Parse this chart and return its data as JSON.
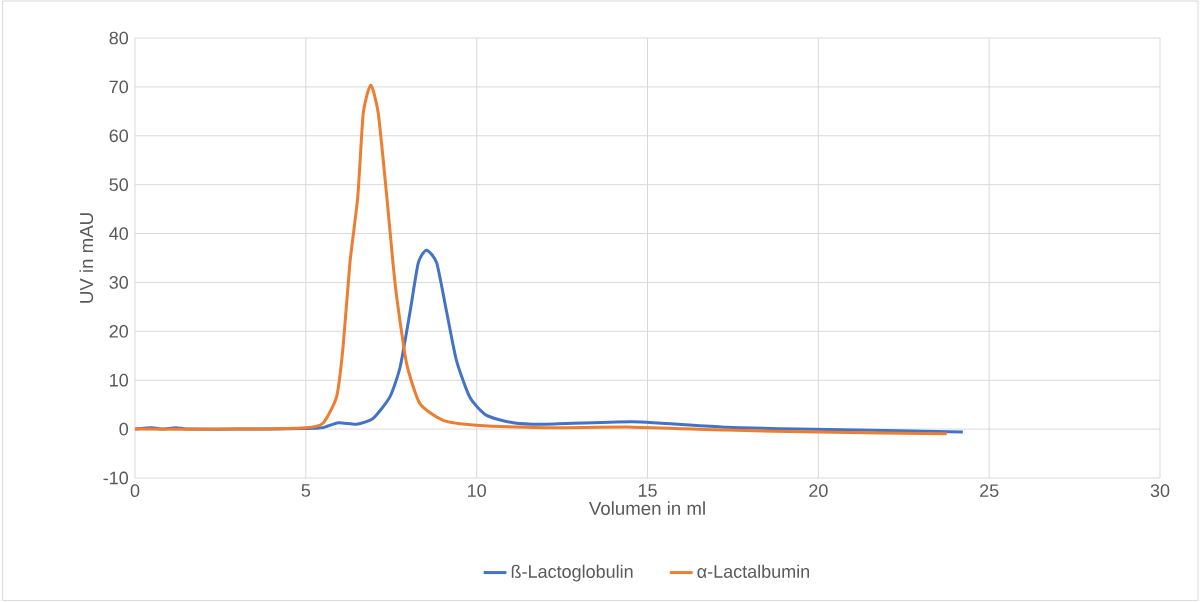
{
  "chart_data": {
    "type": "line",
    "xlabel": "Volumen in ml",
    "ylabel": "UV in mAU",
    "xlim": [
      0,
      30
    ],
    "ylim": [
      -10,
      80
    ],
    "xticks": [
      0,
      5,
      10,
      15,
      20,
      25,
      30
    ],
    "yticks": [
      -10,
      0,
      10,
      20,
      30,
      40,
      50,
      60,
      70,
      80
    ],
    "grid": true,
    "legend": "bottom",
    "marker": "none",
    "line_style": "solid",
    "series": [
      {
        "name": "ß-Lactoglobulin",
        "color": "#4472c4",
        "x": [
          0,
          0.5,
          0.8,
          1.2,
          1.6,
          3,
          5,
          5.5,
          5.95,
          6.49,
          6.97,
          7.46,
          7.76,
          8.05,
          8.29,
          8.53,
          8.83,
          9.12,
          9.41,
          9.8,
          10.29,
          11.07,
          12,
          14.57,
          17.3,
          19.4,
          22,
          24.23
        ],
        "values": [
          0,
          0.3,
          0,
          0.3,
          0,
          0,
          0.1,
          0.3,
          1.3,
          1.0,
          2.2,
          6.6,
          12.7,
          24,
          34,
          36.6,
          34,
          24,
          14,
          6.5,
          2.8,
          1.3,
          1.0,
          1.5,
          0.4,
          0,
          -0.3,
          -0.6
        ]
      },
      {
        "name": "α-Lactalbumin",
        "color": "#ed7d31",
        "x": [
          0,
          3,
          5,
          5.5,
          5.9,
          6.09,
          6.29,
          6.52,
          6.68,
          6.9,
          7.12,
          7.37,
          7.55,
          7.66,
          7.95,
          8.34,
          9.02,
          10,
          12,
          14.57,
          17.3,
          20,
          23.76
        ],
        "values": [
          0,
          0,
          0.3,
          1.2,
          6.6,
          16.8,
          34,
          47.5,
          64.6,
          70.4,
          64.6,
          47.5,
          34,
          27,
          13.4,
          5.2,
          1.8,
          0.8,
          0.3,
          0.4,
          -0.2,
          -0.6,
          -0.95
        ]
      }
    ]
  }
}
